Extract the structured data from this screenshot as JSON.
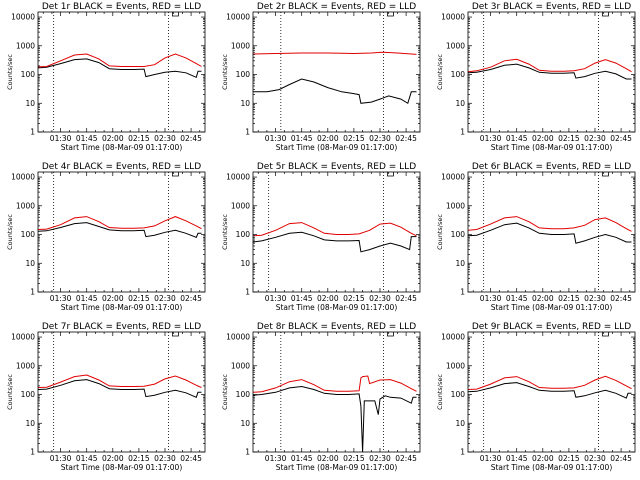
{
  "colors": {
    "events": "#000000",
    "lld": "#e00000",
    "background": "#ffffff"
  },
  "chart_data": [
    {
      "type": "line",
      "title": "Det 1r BLACK = Events, RED = LLD",
      "xlabel": "Start Time (08-Mar-09 01:17:00)",
      "ylabel": "Counts/sec",
      "xlim": [
        "01:17",
        "02:53"
      ],
      "ylim": [
        1,
        15000
      ],
      "yscale": "log",
      "xticks": [
        "01:30",
        "01:45",
        "02:00",
        "02:15",
        "02:30",
        "02:45"
      ],
      "yticks": [
        "1",
        "10",
        "100",
        "1000",
        "10000"
      ],
      "vlines": [
        "01:26",
        "02:32"
      ],
      "marker": "02:36",
      "series": [
        {
          "name": "Events",
          "color": "#000000",
          "x": [
            "01:17",
            "01:22",
            "01:30",
            "01:38",
            "01:45",
            "01:52",
            "01:58",
            "02:05",
            "02:12",
            "02:18",
            "02:19",
            "02:24",
            "02:30",
            "02:36",
            "02:42",
            "02:48",
            "02:49",
            "02:51"
          ],
          "y": [
            170,
            180,
            240,
            330,
            350,
            260,
            160,
            150,
            150,
            155,
            85,
            100,
            120,
            130,
            115,
            80,
            130,
            130
          ]
        },
        {
          "name": "LLD",
          "color": "#e00000",
          "x": [
            "01:17",
            "01:22",
            "01:30",
            "01:38",
            "01:45",
            "01:52",
            "01:58",
            "02:05",
            "02:12",
            "02:18",
            "02:24",
            "02:30",
            "02:36",
            "02:42",
            "02:48",
            "02:51"
          ],
          "y": [
            185,
            190,
            300,
            480,
            520,
            350,
            200,
            190,
            190,
            190,
            220,
            380,
            520,
            380,
            240,
            190
          ]
        }
      ]
    },
    {
      "type": "line",
      "title": "Det 2r BLACK = Events, RED = LLD",
      "xlabel": "Start Time (08-Mar-09 01:17:00)",
      "ylabel": "Counts/sec",
      "xlim": [
        "01:17",
        "02:53"
      ],
      "ylim": [
        1,
        15000
      ],
      "yscale": "log",
      "xticks": [
        "01:30",
        "01:45",
        "02:00",
        "02:15",
        "02:30",
        "02:45"
      ],
      "yticks": [
        "1",
        "10",
        "100",
        "1000",
        "10000"
      ],
      "vlines": [
        "01:33",
        "02:32"
      ],
      "marker": "02:36",
      "series": [
        {
          "name": "Events",
          "color": "#000000",
          "x": [
            "01:17",
            "01:25",
            "01:32",
            "01:38",
            "01:45",
            "01:52",
            "02:00",
            "02:08",
            "02:14",
            "02:18",
            "02:19",
            "02:25",
            "02:30",
            "02:35",
            "02:42",
            "02:46",
            "02:48",
            "02:51"
          ],
          "y": [
            25,
            25,
            30,
            45,
            70,
            55,
            35,
            25,
            22,
            20,
            10,
            11,
            14,
            18,
            14,
            10,
            25,
            25
          ]
        },
        {
          "name": "LLD",
          "color": "#e00000",
          "x": [
            "01:17",
            "01:30",
            "01:45",
            "02:00",
            "02:15",
            "02:25",
            "02:32",
            "02:40",
            "02:51"
          ],
          "y": [
            520,
            540,
            560,
            560,
            540,
            560,
            600,
            560,
            500
          ]
        }
      ]
    },
    {
      "type": "line",
      "title": "Det 3r BLACK = Events, RED = LLD",
      "xlabel": "Start Time (08-Mar-09 01:17:00)",
      "ylabel": "Counts/sec",
      "xlim": [
        "01:17",
        "02:53"
      ],
      "ylim": [
        1,
        15000
      ],
      "yscale": "log",
      "xticks": [
        "01:30",
        "01:45",
        "02:00",
        "02:15",
        "02:30",
        "02:45"
      ],
      "yticks": [
        "1",
        "10",
        "100",
        "1000",
        "10000"
      ],
      "vlines": [
        "01:26",
        "02:32"
      ],
      "marker": "02:36",
      "series": [
        {
          "name": "Events",
          "color": "#000000",
          "x": [
            "01:17",
            "01:22",
            "01:30",
            "01:38",
            "01:45",
            "01:52",
            "01:58",
            "02:05",
            "02:12",
            "02:18",
            "02:19",
            "02:24",
            "02:30",
            "02:36",
            "02:42",
            "02:48",
            "02:51"
          ],
          "y": [
            115,
            120,
            150,
            210,
            230,
            170,
            120,
            110,
            110,
            115,
            75,
            85,
            110,
            130,
            105,
            70,
            70
          ]
        },
        {
          "name": "LLD",
          "color": "#e00000",
          "x": [
            "01:17",
            "01:22",
            "01:30",
            "01:38",
            "01:45",
            "01:52",
            "01:58",
            "02:05",
            "02:12",
            "02:18",
            "02:24",
            "02:30",
            "02:36",
            "02:42",
            "02:48",
            "02:51"
          ],
          "y": [
            125,
            135,
            180,
            300,
            340,
            230,
            140,
            130,
            130,
            135,
            160,
            250,
            330,
            250,
            160,
            125
          ]
        }
      ]
    },
    {
      "type": "line",
      "title": "Det 4r BLACK = Events, RED = LLD",
      "xlabel": "Start Time (08-Mar-09 01:17:00)",
      "ylabel": "Counts/sec",
      "xlim": [
        "01:17",
        "02:53"
      ],
      "ylim": [
        1,
        15000
      ],
      "yscale": "log",
      "xticks": [
        "01:30",
        "01:45",
        "02:00",
        "02:15",
        "02:30",
        "02:45"
      ],
      "yticks": [
        "1",
        "10",
        "100",
        "1000",
        "10000"
      ],
      "vlines": [
        "01:26",
        "02:32"
      ],
      "marker": "02:36",
      "series": [
        {
          "name": "Events",
          "color": "#000000",
          "x": [
            "01:17",
            "01:22",
            "01:30",
            "01:38",
            "01:45",
            "01:52",
            "01:58",
            "02:05",
            "02:12",
            "02:18",
            "02:19",
            "02:24",
            "02:30",
            "02:36",
            "02:42",
            "02:48",
            "02:49",
            "02:51"
          ],
          "y": [
            130,
            135,
            175,
            240,
            260,
            190,
            145,
            135,
            135,
            140,
            85,
            95,
            120,
            140,
            110,
            80,
            110,
            110
          ]
        },
        {
          "name": "LLD",
          "color": "#e00000",
          "x": [
            "01:17",
            "01:22",
            "01:30",
            "01:38",
            "01:45",
            "01:52",
            "01:58",
            "02:05",
            "02:12",
            "02:18",
            "02:24",
            "02:30",
            "02:36",
            "02:42",
            "02:48",
            "02:51"
          ],
          "y": [
            150,
            155,
            220,
            380,
            420,
            280,
            175,
            165,
            165,
            170,
            200,
            300,
            420,
            300,
            200,
            160
          ]
        }
      ]
    },
    {
      "type": "line",
      "title": "Det 5r BLACK = Events, RED = LLD",
      "xlabel": "Start Time (08-Mar-09 01:17:00)",
      "ylabel": "Counts/sec",
      "xlim": [
        "01:17",
        "02:53"
      ],
      "ylim": [
        1,
        15000
      ],
      "yscale": "log",
      "xticks": [
        "01:30",
        "01:45",
        "02:00",
        "02:15",
        "02:30",
        "02:45"
      ],
      "yticks": [
        "1",
        "10",
        "100",
        "1000",
        "10000"
      ],
      "vlines": [
        "01:26",
        "02:32"
      ],
      "marker": "02:36",
      "series": [
        {
          "name": "Events",
          "color": "#000000",
          "x": [
            "01:17",
            "01:22",
            "01:30",
            "01:38",
            "01:45",
            "01:52",
            "01:58",
            "02:05",
            "02:12",
            "02:18",
            "02:19",
            "02:24",
            "02:30",
            "02:36",
            "02:42",
            "02:47",
            "02:48",
            "02:51"
          ],
          "y": [
            55,
            60,
            80,
            110,
            120,
            90,
            65,
            60,
            60,
            62,
            25,
            30,
            40,
            50,
            40,
            30,
            85,
            85
          ]
        },
        {
          "name": "LLD",
          "color": "#e00000",
          "x": [
            "01:17",
            "01:22",
            "01:30",
            "01:38",
            "01:45",
            "01:52",
            "01:58",
            "02:05",
            "02:12",
            "02:18",
            "02:24",
            "02:30",
            "02:36",
            "02:42",
            "02:48",
            "02:51"
          ],
          "y": [
            90,
            95,
            140,
            240,
            260,
            170,
            110,
            100,
            100,
            105,
            140,
            230,
            250,
            180,
            110,
            90
          ]
        }
      ]
    },
    {
      "type": "line",
      "title": "Det 6r BLACK = Events, RED = LLD",
      "xlabel": "Start Time (08-Mar-09 01:17:00)",
      "ylabel": "Counts/sec",
      "xlim": [
        "01:17",
        "02:53"
      ],
      "ylim": [
        1,
        15000
      ],
      "yscale": "log",
      "xticks": [
        "01:30",
        "01:45",
        "02:00",
        "02:15",
        "02:30",
        "02:45"
      ],
      "yticks": [
        "1",
        "10",
        "100",
        "1000",
        "10000"
      ],
      "vlines": [
        "01:26",
        "02:32"
      ],
      "marker": "02:36",
      "series": [
        {
          "name": "Events",
          "color": "#000000",
          "x": [
            "01:17",
            "01:22",
            "01:30",
            "01:38",
            "01:45",
            "01:52",
            "01:58",
            "02:05",
            "02:12",
            "02:18",
            "02:19",
            "02:24",
            "02:30",
            "02:36",
            "02:42",
            "02:48",
            "02:51"
          ],
          "y": [
            90,
            95,
            140,
            220,
            250,
            170,
            110,
            100,
            100,
            105,
            50,
            60,
            80,
            100,
            80,
            55,
            55
          ]
        },
        {
          "name": "LLD",
          "color": "#e00000",
          "x": [
            "01:17",
            "01:22",
            "01:30",
            "01:38",
            "01:45",
            "01:52",
            "01:58",
            "02:05",
            "02:12",
            "02:18",
            "02:24",
            "02:30",
            "02:36",
            "02:42",
            "02:48",
            "02:51"
          ],
          "y": [
            140,
            150,
            230,
            380,
            420,
            280,
            170,
            160,
            160,
            170,
            210,
            330,
            380,
            260,
            160,
            130
          ]
        }
      ]
    },
    {
      "type": "line",
      "title": "Det 7r BLACK = Events, RED = LLD",
      "xlabel": "Start Time (08-Mar-09 01:17:00)",
      "ylabel": "Counts/sec",
      "xlim": [
        "01:17",
        "02:53"
      ],
      "ylim": [
        1,
        15000
      ],
      "yscale": "log",
      "xticks": [
        "01:30",
        "01:45",
        "02:00",
        "02:15",
        "02:30",
        "02:45"
      ],
      "yticks": [
        "1",
        "10",
        "100",
        "1000",
        "10000"
      ],
      "vlines": [
        "01:26",
        "02:32"
      ],
      "marker": "02:36",
      "series": [
        {
          "name": "Events",
          "color": "#000000",
          "x": [
            "01:17",
            "01:22",
            "01:30",
            "01:38",
            "01:45",
            "01:52",
            "01:58",
            "02:05",
            "02:12",
            "02:18",
            "02:19",
            "02:24",
            "02:30",
            "02:36",
            "02:42",
            "02:48",
            "02:49",
            "02:51"
          ],
          "y": [
            150,
            155,
            210,
            300,
            330,
            240,
            160,
            150,
            150,
            155,
            85,
            95,
            120,
            140,
            115,
            80,
            120,
            120
          ]
        },
        {
          "name": "LLD",
          "color": "#e00000",
          "x": [
            "01:17",
            "01:22",
            "01:30",
            "01:38",
            "01:45",
            "01:52",
            "01:58",
            "02:05",
            "02:12",
            "02:18",
            "02:24",
            "02:30",
            "02:36",
            "02:42",
            "02:48",
            "02:51"
          ],
          "y": [
            175,
            180,
            270,
            420,
            480,
            320,
            200,
            190,
            190,
            195,
            230,
            350,
            440,
            320,
            210,
            175
          ]
        }
      ]
    },
    {
      "type": "line",
      "title": "Det 8r BLACK = Events, RED = LLD",
      "xlabel": "Start Time (08-Mar-09 01:17:00)",
      "ylabel": "Counts/sec",
      "xlim": [
        "01:17",
        "02:53"
      ],
      "ylim": [
        1,
        15000
      ],
      "yscale": "log",
      "xticks": [
        "01:30",
        "01:45",
        "02:00",
        "02:15",
        "02:30",
        "02:45"
      ],
      "yticks": [
        "1",
        "10",
        "100",
        "1000",
        "10000"
      ],
      "vlines": [
        "01:33",
        "02:32"
      ],
      "marker": "02:36",
      "series": [
        {
          "name": "Events",
          "color": "#000000",
          "x": [
            "01:17",
            "01:22",
            "01:30",
            "01:38",
            "01:45",
            "01:52",
            "01:58",
            "02:05",
            "02:12",
            "02:18",
            "02:19",
            "02:20",
            "02:21",
            "02:24",
            "02:27",
            "02:29",
            "02:30",
            "02:33",
            "02:36",
            "02:42",
            "02:48",
            "02:49",
            "02:51"
          ],
          "y": [
            95,
            100,
            120,
            170,
            190,
            150,
            110,
            100,
            100,
            105,
            40,
            1,
            60,
            60,
            60,
            20,
            70,
            90,
            80,
            75,
            50,
            80,
            80
          ]
        },
        {
          "name": "LLD",
          "color": "#e00000",
          "x": [
            "01:17",
            "01:22",
            "01:30",
            "01:38",
            "01:45",
            "01:52",
            "01:58",
            "02:05",
            "02:12",
            "02:18",
            "02:19",
            "02:20",
            "02:23",
            "02:24",
            "02:30",
            "02:36",
            "02:42",
            "02:48",
            "02:51"
          ],
          "y": [
            120,
            125,
            170,
            280,
            330,
            220,
            140,
            130,
            130,
            135,
            380,
            420,
            440,
            240,
            320,
            330,
            250,
            160,
            130
          ]
        }
      ]
    },
    {
      "type": "line",
      "title": "Det 9r BLACK = Events, RED = LLD",
      "xlabel": "Start Time (08-Mar-09 01:17:00)",
      "ylabel": "Counts/sec",
      "xlim": [
        "01:17",
        "02:53"
      ],
      "ylim": [
        1,
        15000
      ],
      "yscale": "log",
      "xticks": [
        "01:30",
        "01:45",
        "02:00",
        "02:15",
        "02:30",
        "02:45"
      ],
      "yticks": [
        "1",
        "10",
        "100",
        "1000",
        "10000"
      ],
      "vlines": [
        "01:26",
        "02:32"
      ],
      "marker": "02:36",
      "series": [
        {
          "name": "Events",
          "color": "#000000",
          "x": [
            "01:17",
            "01:22",
            "01:30",
            "01:38",
            "01:45",
            "01:52",
            "01:58",
            "02:05",
            "02:12",
            "02:18",
            "02:19",
            "02:24",
            "02:30",
            "02:36",
            "02:42",
            "02:48",
            "02:49",
            "02:51"
          ],
          "y": [
            125,
            130,
            170,
            240,
            260,
            190,
            140,
            130,
            130,
            135,
            80,
            90,
            115,
            140,
            110,
            75,
            110,
            110
          ]
        },
        {
          "name": "LLD",
          "color": "#e00000",
          "x": [
            "01:17",
            "01:22",
            "01:30",
            "01:38",
            "01:45",
            "01:52",
            "01:58",
            "02:05",
            "02:12",
            "02:18",
            "02:24",
            "02:30",
            "02:36",
            "02:42",
            "02:48",
            "02:51"
          ],
          "y": [
            150,
            155,
            230,
            380,
            420,
            280,
            175,
            165,
            165,
            170,
            210,
            320,
            430,
            310,
            200,
            160
          ]
        }
      ]
    }
  ]
}
